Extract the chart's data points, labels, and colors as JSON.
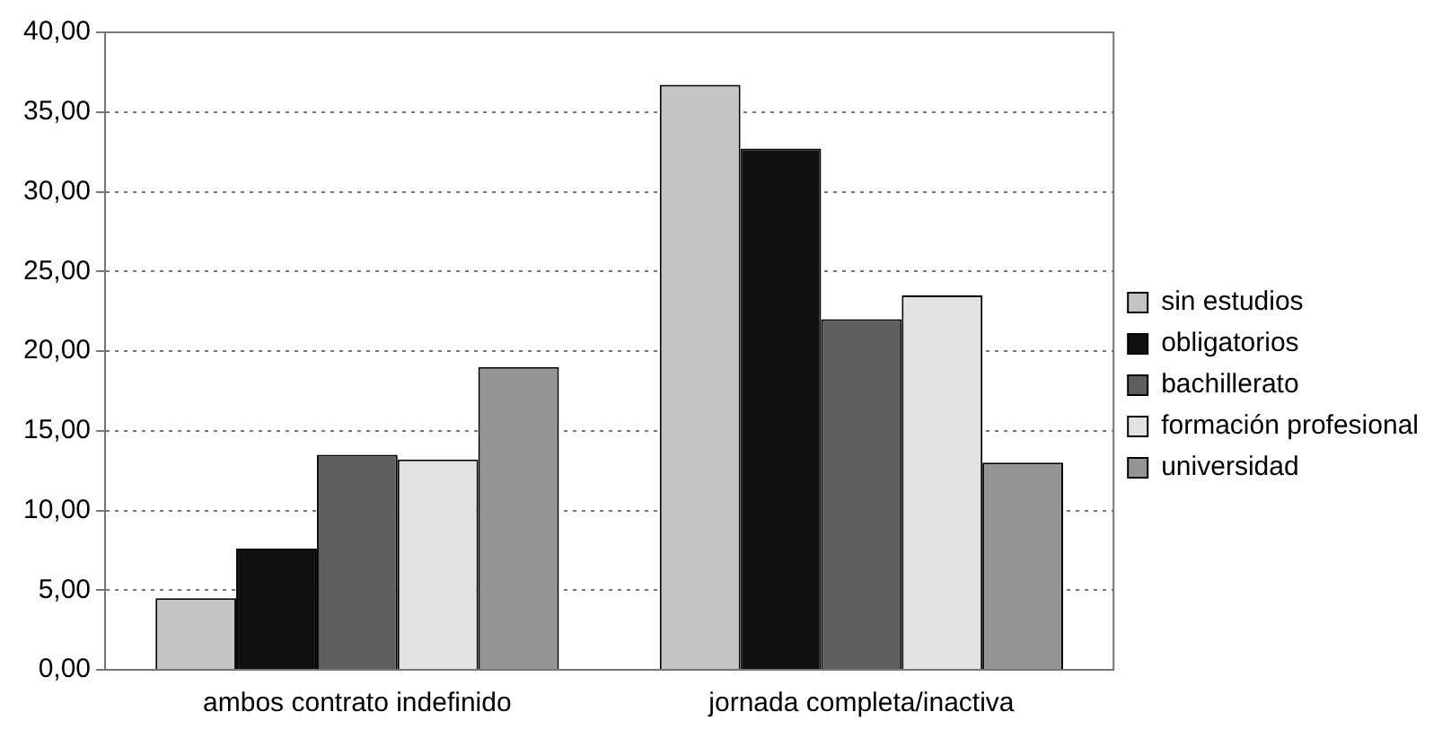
{
  "chart_data": {
    "type": "bar",
    "categories": [
      "ambos contrato indefinido",
      "jornada completa/inactiva"
    ],
    "series": [
      {
        "name": "sin estudios",
        "color": "#c4c4c4",
        "values": [
          4.5,
          36.7
        ]
      },
      {
        "name": "obligatorios",
        "color": "#111111",
        "values": [
          7.6,
          32.7
        ]
      },
      {
        "name": "bachillerato",
        "color": "#5e5e5e",
        "values": [
          13.5,
          22.0
        ]
      },
      {
        "name": "formación profesional",
        "color": "#e2e2e2",
        "values": [
          13.2,
          23.5
        ]
      },
      {
        "name": "universidad",
        "color": "#959595",
        "values": [
          19.0,
          13.0
        ]
      }
    ],
    "ylim": [
      0,
      40
    ],
    "yticks": [
      {
        "value": 0,
        "label": "0,00"
      },
      {
        "value": 5,
        "label": "5,00"
      },
      {
        "value": 10,
        "label": "10,00"
      },
      {
        "value": 15,
        "label": "15,00"
      },
      {
        "value": 20,
        "label": "20,00"
      },
      {
        "value": 25,
        "label": "25,00"
      },
      {
        "value": 30,
        "label": "30,00"
      },
      {
        "value": 35,
        "label": "35,00"
      },
      {
        "value": 40,
        "label": "40,00"
      }
    ],
    "grid": "y",
    "legend": "right"
  }
}
